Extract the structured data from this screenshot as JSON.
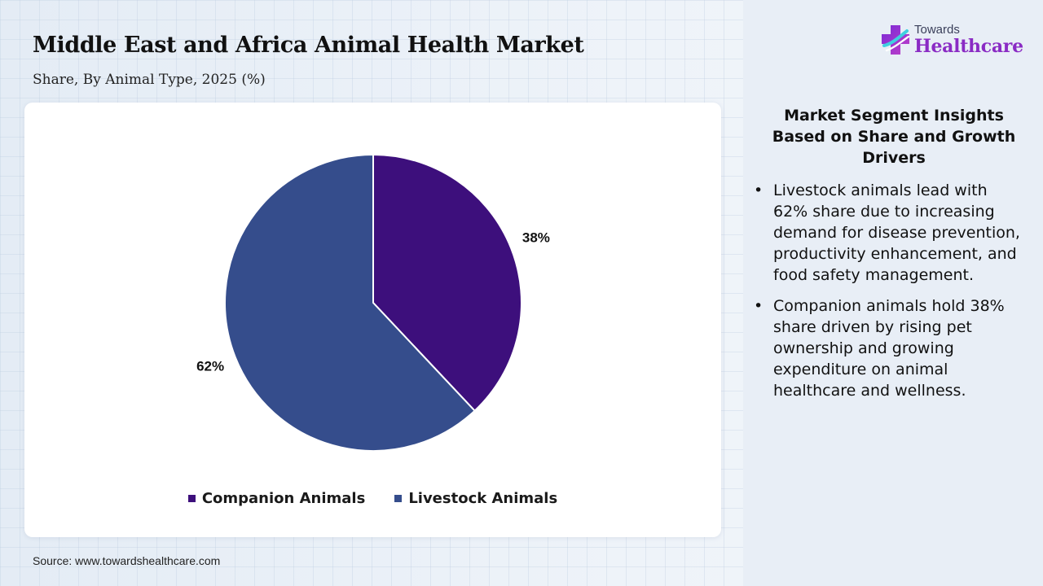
{
  "header": {
    "title": "Middle East and Africa Animal Health Market",
    "subtitle": "Share, By Animal Type, 2025 (%)"
  },
  "chart_data": {
    "type": "pie",
    "categories": [
      "Companion Animals",
      "Livestock Animals"
    ],
    "values": [
      38,
      62
    ],
    "labels": [
      "38%",
      "62%"
    ],
    "colors": [
      "#3d0f7c",
      "#354d8c"
    ],
    "start_angle": "12 o'clock, clockwise",
    "legend_position": "bottom"
  },
  "footer": {
    "source": "Source: www.towardshealthcare.com"
  },
  "logo": {
    "top_text": "Towards",
    "bottom_text": "Healthcare",
    "mark_icon": "healthcare-cross-icon"
  },
  "insights": {
    "heading": "Market Segment Insights Based on Share and Growth Drivers",
    "bullet_glyph": "•",
    "items": [
      "Livestock animals lead with 62% share due to increasing demand for disease prevention, productivity enhancement, and food safety management.",
      "Companion animals hold 38% share driven by rising pet ownership and growing expenditure on animal healthcare and wellness."
    ]
  },
  "colors": {
    "page_background": "#e9f0f7",
    "panel_background": "#e8eef6",
    "card_background": "#ffffff",
    "brand_purple": "#8a2bc4"
  }
}
